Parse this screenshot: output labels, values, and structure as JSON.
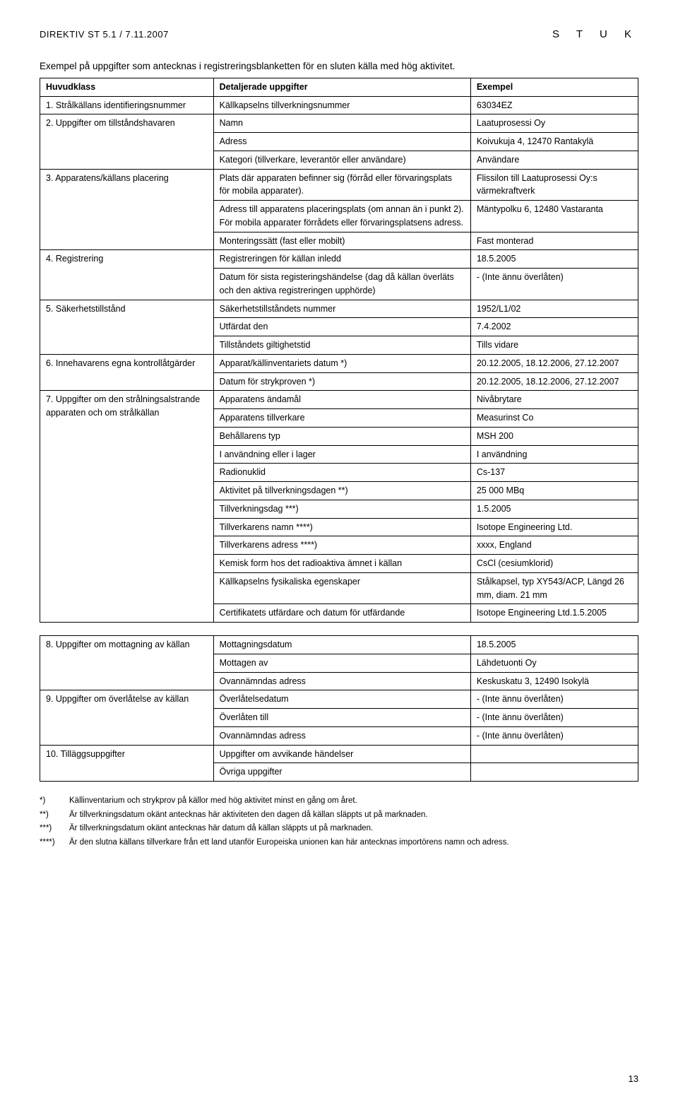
{
  "header": {
    "doc_code": "DIREKTIV ST 5.1 / 7.11.2007",
    "logo": "S T U K"
  },
  "intro": "Exempel på uppgifter som antecknas i registreringsblanketten för en sluten källa med hög aktivitet.",
  "table1": {
    "head": [
      "Huvudklass",
      "Detaljerade uppgifter",
      "Exempel"
    ],
    "rows": [
      {
        "a": "1. Strålkällans identifieringsnummer",
        "b": "Källkapselns tillverkningsnummer",
        "c": "63034EZ",
        "aspan": 1
      },
      {
        "a": "2. Uppgifter om tillståndshavaren",
        "b": "Namn",
        "c": "Laatuprosessi Oy",
        "aspan": 3
      },
      {
        "b": "Adress",
        "c": "Koivukuja 4, 12470 Rantakylä"
      },
      {
        "b": "Kategori (tillverkare, leverantör eller användare)",
        "c": "Användare"
      },
      {
        "a": "3. Apparatens/källans placering",
        "b": "Plats där apparaten befinner sig (förråd eller förvaringsplats för mobila apparater).",
        "c": "Flissilon till Laatuprosessi Oy:s värmekraftverk",
        "aspan": 3
      },
      {
        "b": "Adress till apparatens placeringsplats (om annan än i punkt 2). För mobila apparater förrådets eller förvaringsplatsens adress.",
        "c": "Mäntypolku 6, 12480 Vastaranta"
      },
      {
        "b": "Monteringssätt (fast eller mobilt)",
        "c": "Fast monterad"
      },
      {
        "a": "4. Registrering",
        "b": "Registreringen för källan inledd",
        "c": "18.5.2005",
        "aspan": 2
      },
      {
        "b": "Datum för sista registeringshändelse (dag då källan överläts och den aktiva registreringen upphörde)",
        "c": "- (Inte ännu överlåten)"
      },
      {
        "a": "5. Säkerhetstillstånd",
        "b": "Säkerhetstillståndets nummer",
        "c": "1952/L1/02",
        "aspan": 3
      },
      {
        "b": "Utfärdat den",
        "c": "7.4.2002"
      },
      {
        "b": "Tillståndets giltighetstid",
        "c": "Tills vidare"
      },
      {
        "a": "6. Innehavarens egna kontrollåtgärder",
        "b": "Apparat/källinventariets datum *)",
        "c": "20.12.2005, 18.12.2006, 27.12.2007",
        "aspan": 2
      },
      {
        "b": "Datum för strykproven *)",
        "c": "20.12.2005, 18.12.2006, 27.12.2007"
      },
      {
        "a": "7. Uppgifter om den strålningsalstrande apparaten och om strålkällan",
        "b": "Apparatens ändamål",
        "c": "Nivåbrytare",
        "aspan": 12
      },
      {
        "b": "Apparatens tillverkare",
        "c": "Measurinst Co"
      },
      {
        "b": "Behållarens typ",
        "c": "MSH 200"
      },
      {
        "b": "I användning eller i lager",
        "c": "I användning"
      },
      {
        "b": "Radionuklid",
        "c": "Cs-137"
      },
      {
        "b": "Aktivitet på tillverkningsdagen **)",
        "c": "25 000 MBq"
      },
      {
        "b": "Tillverkningsdag ***)",
        "c": "1.5.2005"
      },
      {
        "b": "Tillverkarens namn ****)",
        "c": "Isotope Engineering Ltd."
      },
      {
        "b": "Tillverkarens adress ****)",
        "c": "xxxx, England"
      },
      {
        "b": "Kemisk form hos det radioaktiva ämnet i källan",
        "c": "CsCl (cesiumklorid)"
      },
      {
        "b": "Källkapselns fysikaliska egenskaper",
        "c": "Stålkapsel, typ XY543/ACP, Längd 26 mm, diam. 21 mm"
      },
      {
        "b": "Certifikatets utfärdare och datum för utfärdande",
        "c": "Isotope Engineering Ltd.1.5.2005"
      }
    ]
  },
  "table2": {
    "rows": [
      {
        "a": "8. Uppgifter om mottagning av källan",
        "b": "Mottagningsdatum",
        "c": "18.5.2005",
        "aspan": 3
      },
      {
        "b": "Mottagen av",
        "c": "Lähdetuonti Oy"
      },
      {
        "b": "Ovannämndas adress",
        "c": "Keskuskatu 3, 12490 Isokylä"
      },
      {
        "a": "9. Uppgifter om överlåtelse av källan",
        "b": "Överlåtelsedatum",
        "c": "- (Inte ännu överlåten)",
        "aspan": 3
      },
      {
        "b": "Överlåten till",
        "c": "- (Inte ännu överlåten)"
      },
      {
        "b": "Ovannämndas adress",
        "c": "- (Inte ännu överlåten)"
      },
      {
        "a": "10. Tilläggsuppgifter",
        "b": "Uppgifter om avvikande händelser",
        "c": "",
        "aspan": 2
      },
      {
        "b": "Övriga uppgifter",
        "c": ""
      }
    ]
  },
  "footnotes": [
    {
      "mark": "*)",
      "text": "Källinventarium och strykprov på källor med hög aktivitet minst en gång om året."
    },
    {
      "mark": "**)",
      "text": "Är tillverkningsdatum okänt antecknas här aktiviteten den dagen då källan släppts ut på marknaden."
    },
    {
      "mark": "***)",
      "text": "Är tillverkningsdatum okänt antecknas här datum då källan släppts ut på marknaden."
    },
    {
      "mark": "****)",
      "text": "Är den slutna källans tillverkare från ett land utanför Europeiska unionen kan här antecknas importörens namn och adress."
    }
  ],
  "page_number": "13"
}
